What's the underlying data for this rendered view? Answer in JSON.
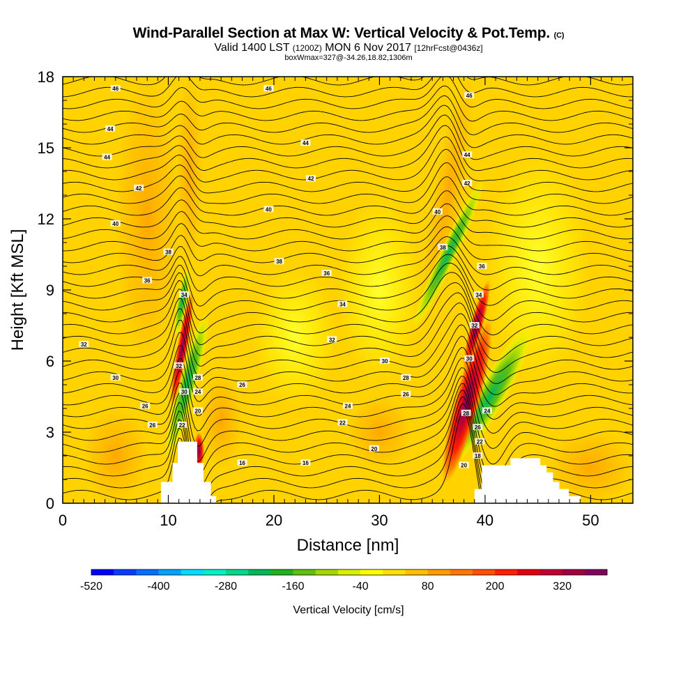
{
  "header": {
    "title_main": "Wind-Parallel Section at Max W: Vertical Velocity & Pot.Temp.",
    "title_mark": "(C)",
    "valid_a": "Valid 1400 LST",
    "valid_b": "(1200Z)",
    "valid_c": "MON 6 Nov 2017",
    "valid_d": "[12hrFcst@0436z]",
    "box_info": "boxWmax=327@-34.26,18.82,1306m"
  },
  "chart_data": {
    "type": "heatmap",
    "xlabel": "Distance [nm]",
    "ylabel": "Height [Kft MSL]",
    "xlim": [
      0,
      54
    ],
    "ylim": [
      0,
      18
    ],
    "xticks": [
      0,
      10,
      20,
      30,
      40,
      50
    ],
    "yticks": [
      0,
      3,
      6,
      9,
      12,
      15,
      18
    ],
    "colorbar": {
      "label": "Vertical Velocity [cm/s]",
      "tick_labels": [
        "-520",
        "-400",
        "-280",
        "-160",
        "-40",
        "80",
        "200",
        "320"
      ],
      "colors": [
        "#0000ff",
        "#0a3cff",
        "#0070ff",
        "#00a4ff",
        "#00dcff",
        "#00f0c8",
        "#00d88c",
        "#00b85a",
        "#20b020",
        "#60c010",
        "#a0d800",
        "#d8f000",
        "#ffff00",
        "#ffe000",
        "#ffc000",
        "#ff9c00",
        "#ff7800",
        "#ff5000",
        "#ff2000",
        "#e00010",
        "#c00030",
        "#a00040",
        "#800060"
      ]
    },
    "theta_contour_labels": [
      {
        "x": 2,
        "y": 6.7,
        "t": "32"
      },
      {
        "x": 4.5,
        "y": 15.8,
        "t": "44"
      },
      {
        "x": 4.2,
        "y": 14.6,
        "t": "44"
      },
      {
        "x": 5,
        "y": 17.5,
        "t": "46"
      },
      {
        "x": 5,
        "y": 5.3,
        "t": "30"
      },
      {
        "x": 5,
        "y": 11.8,
        "t": "40"
      },
      {
        "x": 7.2,
        "y": 13.3,
        "t": "42"
      },
      {
        "x": 8,
        "y": 9.4,
        "t": "36"
      },
      {
        "x": 7.8,
        "y": 4.1,
        "t": "26"
      },
      {
        "x": 8.5,
        "y": 3.3,
        "t": "26"
      },
      {
        "x": 10,
        "y": 10.6,
        "t": "38"
      },
      {
        "x": 11.5,
        "y": 8.8,
        "t": "34"
      },
      {
        "x": 11,
        "y": 5.8,
        "t": "32"
      },
      {
        "x": 11.5,
        "y": 4.7,
        "t": "30"
      },
      {
        "x": 11.3,
        "y": 3.3,
        "t": "22"
      },
      {
        "x": 12.8,
        "y": 5.3,
        "t": "28"
      },
      {
        "x": 12.8,
        "y": 4.7,
        "t": "24"
      },
      {
        "x": 12.8,
        "y": 3.9,
        "t": "20"
      },
      {
        "x": 17,
        "y": 5.0,
        "t": "26"
      },
      {
        "x": 17,
        "y": 1.7,
        "t": "16"
      },
      {
        "x": 19.5,
        "y": 12.4,
        "t": "40"
      },
      {
        "x": 20.5,
        "y": 10.2,
        "t": "38"
      },
      {
        "x": 19.5,
        "y": 17.5,
        "t": "46"
      },
      {
        "x": 23,
        "y": 15.2,
        "t": "44"
      },
      {
        "x": 23.5,
        "y": 13.7,
        "t": "42"
      },
      {
        "x": 25,
        "y": 9.7,
        "t": "36"
      },
      {
        "x": 26.5,
        "y": 8.4,
        "t": "34"
      },
      {
        "x": 25.5,
        "y": 6.9,
        "t": "32"
      },
      {
        "x": 23,
        "y": 1.7,
        "t": "16"
      },
      {
        "x": 27,
        "y": 4.1,
        "t": "24"
      },
      {
        "x": 26.5,
        "y": 3.4,
        "t": "22"
      },
      {
        "x": 30.5,
        "y": 6.0,
        "t": "30"
      },
      {
        "x": 32.5,
        "y": 5.3,
        "t": "28"
      },
      {
        "x": 32.5,
        "y": 4.6,
        "t": "26"
      },
      {
        "x": 29.5,
        "y": 2.3,
        "t": "20"
      },
      {
        "x": 35.5,
        "y": 12.3,
        "t": "40"
      },
      {
        "x": 36,
        "y": 10.8,
        "t": "38"
      },
      {
        "x": 38.5,
        "y": 17.2,
        "t": "46"
      },
      {
        "x": 38.3,
        "y": 14.7,
        "t": "44"
      },
      {
        "x": 38.3,
        "y": 13.5,
        "t": "42"
      },
      {
        "x": 39.7,
        "y": 10.0,
        "t": "36"
      },
      {
        "x": 39.4,
        "y": 8.8,
        "t": "34"
      },
      {
        "x": 39,
        "y": 7.5,
        "t": "32"
      },
      {
        "x": 38.5,
        "y": 6.1,
        "t": "30"
      },
      {
        "x": 38.2,
        "y": 3.8,
        "t": "28"
      },
      {
        "x": 39.3,
        "y": 3.2,
        "t": "26"
      },
      {
        "x": 40.2,
        "y": 3.9,
        "t": "24"
      },
      {
        "x": 39.5,
        "y": 2.6,
        "t": "22"
      },
      {
        "x": 38,
        "y": 1.6,
        "t": "20"
      },
      {
        "x": 39.3,
        "y": 2.0,
        "t": "18"
      }
    ]
  }
}
